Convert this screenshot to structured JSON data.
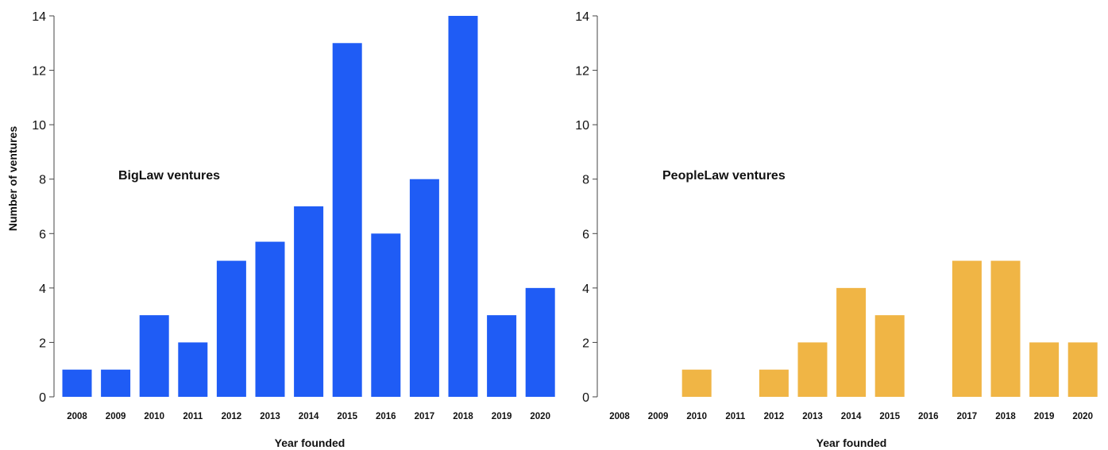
{
  "chart_data": [
    {
      "type": "bar",
      "series_label": "BigLaw ventures",
      "categories": [
        "2008",
        "2009",
        "2010",
        "2011",
        "2012",
        "2013",
        "2014",
        "2015",
        "2016",
        "2017",
        "2018",
        "2019",
        "2020"
      ],
      "values": [
        1,
        1,
        3,
        2,
        5,
        5.7,
        7,
        13,
        6,
        8,
        14,
        3,
        4
      ],
      "xlabel": "Year founded",
      "ylabel": "Number of ventures",
      "ylim": [
        0,
        14
      ],
      "yticks": [
        "0",
        "2",
        "4",
        "6",
        "8",
        "10",
        "12",
        "14"
      ],
      "highlight_tick": "2",
      "color": "#1f5cf5",
      "highlight_tick_color": "#1f5cf5",
      "grid": false
    },
    {
      "type": "bar",
      "series_label": "PeopleLaw ventures",
      "categories": [
        "2008",
        "2009",
        "2010",
        "2011",
        "2012",
        "2013",
        "2014",
        "2015",
        "2016",
        "2017",
        "2018",
        "2019",
        "2020"
      ],
      "values": [
        0,
        0,
        1,
        0,
        1,
        2,
        4,
        3,
        0,
        5,
        5,
        2,
        2
      ],
      "xlabel": "Year founded",
      "ylabel": "",
      "ylim": [
        0,
        14
      ],
      "yticks": [
        "0",
        "2",
        "4",
        "6",
        "8",
        "10",
        "12",
        "14"
      ],
      "highlight_tick": "",
      "color": "#f0b545",
      "highlight_tick_color": "#f0b545",
      "grid": false
    }
  ]
}
